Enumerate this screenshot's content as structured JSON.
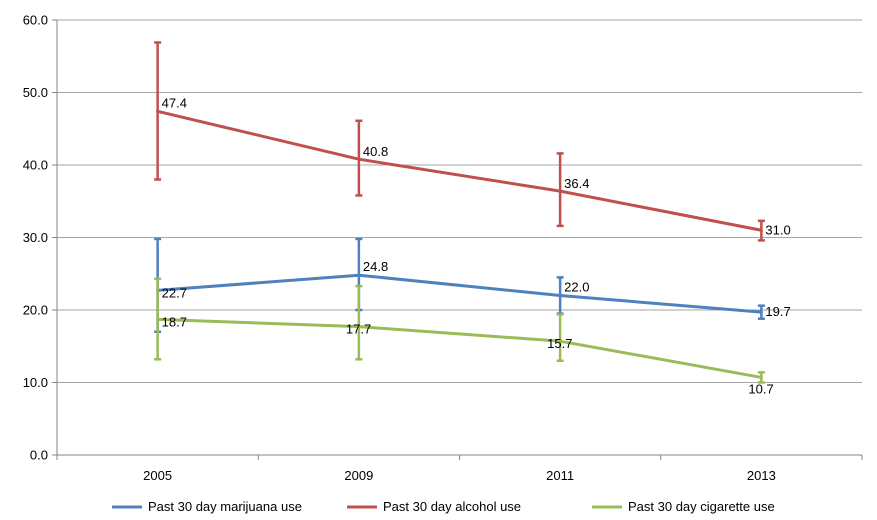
{
  "chart_data": {
    "type": "line",
    "categories": [
      "2005",
      "2009",
      "2011",
      "2013"
    ],
    "ylim": [
      0,
      60
    ],
    "yticks": [
      "0.0",
      "10.0",
      "20.0",
      "30.0",
      "40.0",
      "50.0",
      "60.0"
    ],
    "grid": true,
    "legend_position": "bottom",
    "series": [
      {
        "name": "Past 30 day marijuana use",
        "color": "#4f81bd",
        "values": [
          22.7,
          24.8,
          22.0,
          19.7
        ],
        "labels": [
          "22.7",
          "24.8",
          "22.0",
          "19.7"
        ],
        "error_low": [
          17.0,
          20.0,
          19.5,
          18.8
        ],
        "error_high": [
          29.8,
          29.8,
          24.5,
          20.6
        ]
      },
      {
        "name": "Past 30 day alcohol use",
        "color": "#c0504d",
        "values": [
          47.4,
          40.8,
          36.4,
          31.0
        ],
        "labels": [
          "47.4",
          "40.8",
          "36.4",
          "31.0"
        ],
        "error_low": [
          38.0,
          35.8,
          31.6,
          29.6
        ],
        "error_high": [
          56.9,
          46.1,
          41.6,
          32.3
        ]
      },
      {
        "name": "Past 30 day cigarette use",
        "color": "#9bbb59",
        "values": [
          18.7,
          17.7,
          15.7,
          10.7
        ],
        "labels": [
          "18.7",
          "17.7",
          "15.7",
          "10.7"
        ],
        "error_low": [
          13.2,
          13.2,
          13.0,
          10.0
        ],
        "error_high": [
          24.3,
          23.3,
          19.4,
          11.4
        ]
      }
    ]
  }
}
